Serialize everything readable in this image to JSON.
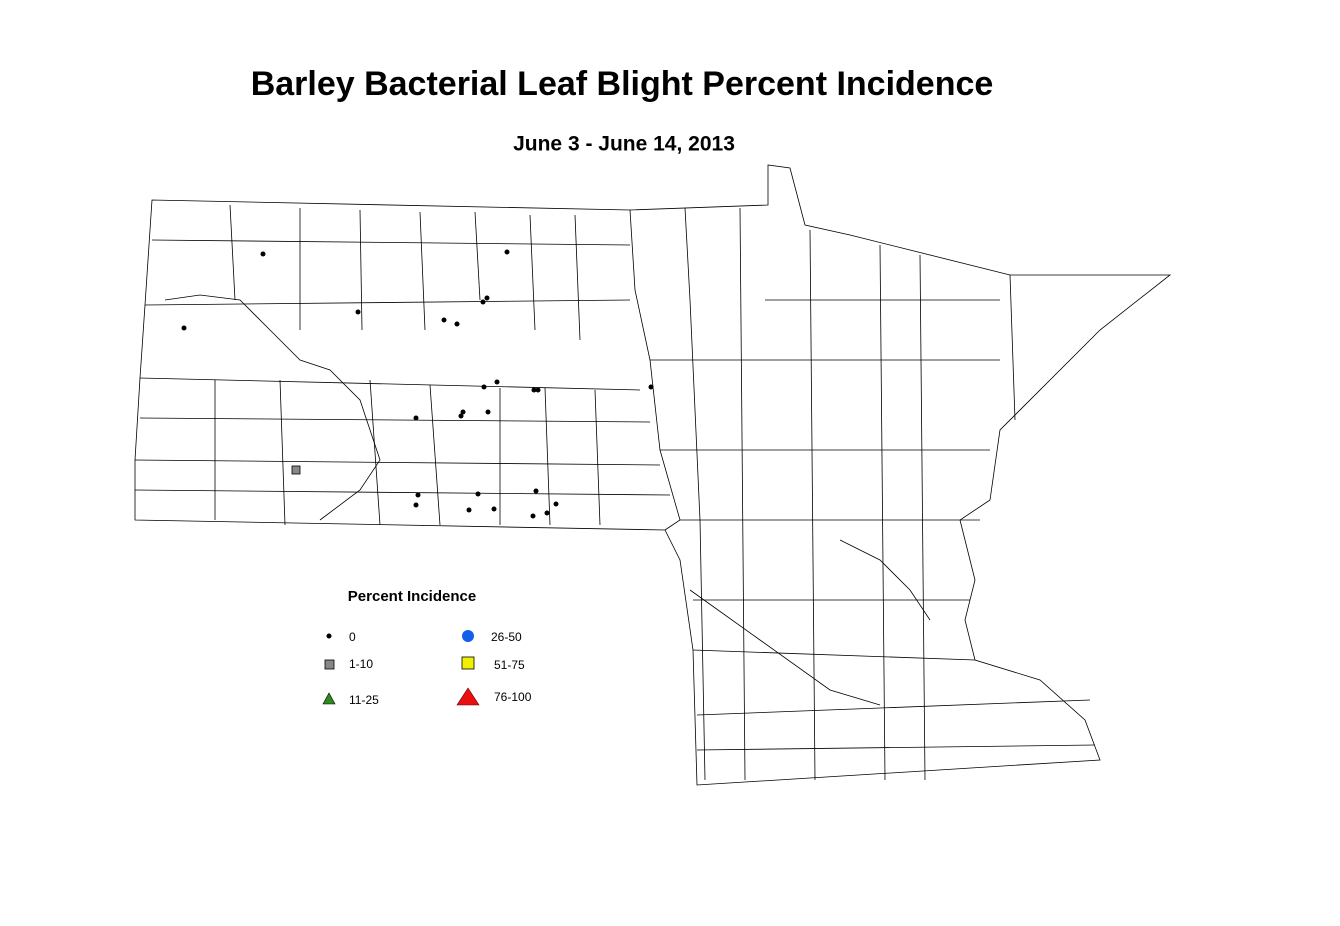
{
  "title": "Barley Bacterial Leaf Blight Percent Incidence",
  "subtitle": "June 3 - June 14, 2013",
  "legend": {
    "title": "Percent Incidence",
    "items": [
      {
        "label": "0"
      },
      {
        "label": "1-10"
      },
      {
        "label": "11-25"
      },
      {
        "label": "26-50"
      },
      {
        "label": "51-75"
      },
      {
        "label": "76-100"
      }
    ]
  }
}
